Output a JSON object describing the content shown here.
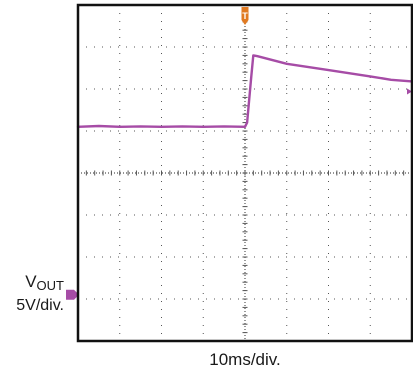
{
  "chart_data": {
    "type": "line",
    "title": "",
    "grid": true,
    "divisions": {
      "x": 8,
      "y": 8
    },
    "series": [
      {
        "name": "VOUT",
        "color": "#a64ca6",
        "points": [
          [
            0.0,
            5.1
          ],
          [
            0.5,
            5.12
          ],
          [
            1.0,
            5.1
          ],
          [
            1.5,
            5.11
          ],
          [
            2.0,
            5.1
          ],
          [
            2.5,
            5.11
          ],
          [
            3.0,
            5.1
          ],
          [
            3.5,
            5.11
          ],
          [
            4.0,
            5.1
          ],
          [
            4.05,
            5.2
          ],
          [
            4.15,
            6.3
          ],
          [
            4.2,
            6.8
          ],
          [
            4.3,
            6.78
          ],
          [
            5.0,
            6.6
          ],
          [
            6.0,
            6.45
          ],
          [
            7.0,
            6.3
          ],
          [
            7.5,
            6.22
          ],
          [
            8.0,
            6.18
          ]
        ]
      }
    ],
    "trigger_marker": {
      "label": "T",
      "division": 4.0,
      "color": "#e07a22"
    },
    "ground_marker_division": 1.1
  },
  "labels": {
    "channel_name_main": "V",
    "channel_name_sub": "OUT",
    "channel_scale": "5V/div.",
    "time_scale": "10ms/div."
  },
  "colors": {
    "trace": "#a64ca6",
    "grid_dots": "#555555",
    "frame": "#111111",
    "trigger": "#e07a22"
  }
}
